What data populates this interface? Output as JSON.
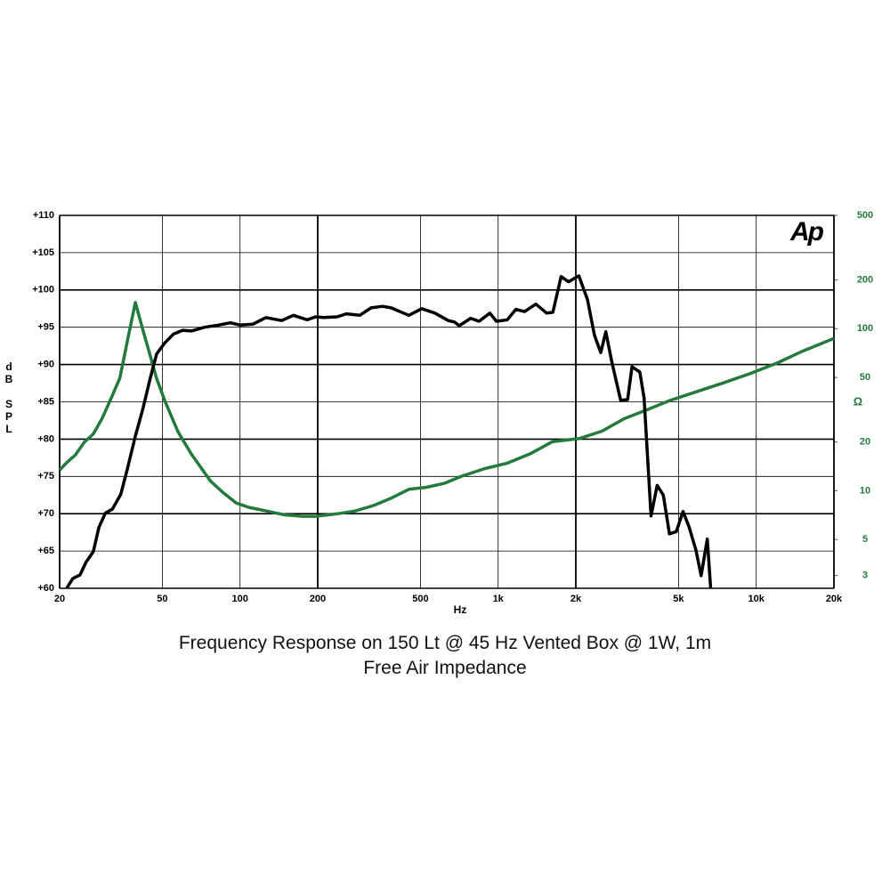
{
  "chart_data": {
    "type": "line",
    "title": "Frequency Response on 150 Lt @ 45 Hz Vented Box @ 1W, 1m",
    "subtitle": "Free Air Impedance",
    "logo": "Ap",
    "x_label": "Hz",
    "y_label": "dB SPL",
    "y2_label": "Ω",
    "x_scale": "log",
    "y2_scale": "log",
    "grid": true,
    "xlim": [
      20,
      20000
    ],
    "xticks": [
      20,
      50,
      100,
      200,
      500,
      {
        "value": 1000,
        "label": "1k"
      },
      {
        "value": 2000,
        "label": "2k"
      },
      {
        "value": 5000,
        "label": "5k"
      },
      {
        "value": 10000,
        "label": "10k"
      },
      {
        "value": 20000,
        "label": "20k"
      }
    ],
    "ylim": [
      60,
      110
    ],
    "yticks": [
      {
        "value": 60,
        "label": "+60"
      },
      {
        "value": 65,
        "label": "+65"
      },
      {
        "value": 70,
        "label": "+70"
      },
      {
        "value": 75,
        "label": "+75"
      },
      {
        "value": 80,
        "label": "+80"
      },
      {
        "value": 85,
        "label": "+85"
      },
      {
        "value": 90,
        "label": "+90"
      },
      {
        "value": 95,
        "label": "+95"
      },
      {
        "value": 100,
        "label": "+100"
      },
      {
        "value": 105,
        "label": "+105"
      },
      {
        "value": 110,
        "label": "+110"
      }
    ],
    "y2lim": [
      2.5,
      500
    ],
    "y2ticks": [
      3,
      5,
      10,
      20,
      50,
      100,
      200,
      500
    ],
    "series": [
      {
        "name": "Frequency Response",
        "color": "#000000",
        "x": [
          21.3,
          22.5,
          24.0,
          25.3,
          27.0,
          28.4,
          30.1,
          32.0,
          34.5,
          36.6,
          39.3,
          42.0,
          44.9,
          47.5,
          51.1,
          55.3,
          59.9,
          64.8,
          72.9,
          82.8,
          91.8,
          100,
          112,
          126,
          145,
          161,
          182,
          196,
          211,
          238,
          258,
          291,
          322,
          356,
          385,
          451,
          506,
          569,
          641,
          677,
          707,
          783,
          844,
          929,
          985,
          1085,
          1171,
          1266,
          1400,
          1541,
          1629,
          1755,
          1872,
          2054,
          2220,
          2362,
          2498,
          2614,
          2763,
          2983,
          3174,
          3300,
          3540,
          3678,
          3912,
          4133,
          4365,
          4610,
          4900,
          5206,
          5497,
          5840,
          6117,
          6460,
          6662
        ],
        "values": [
          60,
          61.3,
          61.8,
          63.5,
          64.9,
          68.2,
          70.1,
          70.6,
          72.6,
          76,
          80.4,
          84,
          88.2,
          91.4,
          92.9,
          94.1,
          94.6,
          94.5,
          95,
          95.3,
          95.6,
          95.3,
          95.4,
          96.3,
          95.9,
          96.6,
          96,
          96.4,
          96.3,
          96.4,
          96.8,
          96.6,
          97.6,
          97.8,
          97.6,
          96.6,
          97.5,
          96.9,
          95.9,
          95.7,
          95.2,
          96.2,
          95.8,
          96.9,
          95.8,
          96,
          97.4,
          97.1,
          98.1,
          96.9,
          97,
          101.8,
          101.1,
          101.9,
          98.7,
          93.9,
          91.6,
          94.4,
          90.2,
          85.2,
          85.3,
          89.7,
          89,
          85.5,
          69.7,
          73.8,
          72.5,
          67.3,
          67.6,
          70.3,
          68.2,
          65.1,
          61.7,
          66.6,
          60
        ]
      },
      {
        "name": "Free Air Impedance",
        "color": "#237a3c",
        "axis": "y2",
        "x": [
          20,
          21.3,
          23,
          24.9,
          27,
          29.2,
          31.6,
          34.2,
          37.2,
          39.3,
          42,
          44.9,
          47.5,
          51.1,
          57.5,
          64.8,
          76.7,
          85.6,
          96.7,
          108,
          126,
          149,
          175,
          196,
          238,
          280,
          329,
          385,
          451,
          528,
          618,
          723,
          888,
          1085,
          1331,
          1626,
          2064,
          2524,
          3091,
          3781,
          4616,
          5862,
          7442,
          9447,
          11992,
          15222,
          20000
        ],
        "values": [
          13.4,
          14.9,
          16.6,
          19.9,
          22.4,
          27.9,
          36.9,
          49.4,
          95.4,
          144.9,
          99,
          67.8,
          49.4,
          36,
          23.1,
          16.8,
          11.5,
          9.8,
          8.4,
          7.9,
          7.5,
          7.1,
          6.95,
          6.95,
          7.2,
          7.5,
          8.1,
          9.0,
          10.2,
          10.5,
          11.1,
          12.3,
          13.7,
          14.8,
          16.9,
          20.1,
          21,
          23.3,
          27.9,
          31.6,
          36,
          40.8,
          46.2,
          52.7,
          61.2,
          73,
          87
        ]
      }
    ]
  }
}
